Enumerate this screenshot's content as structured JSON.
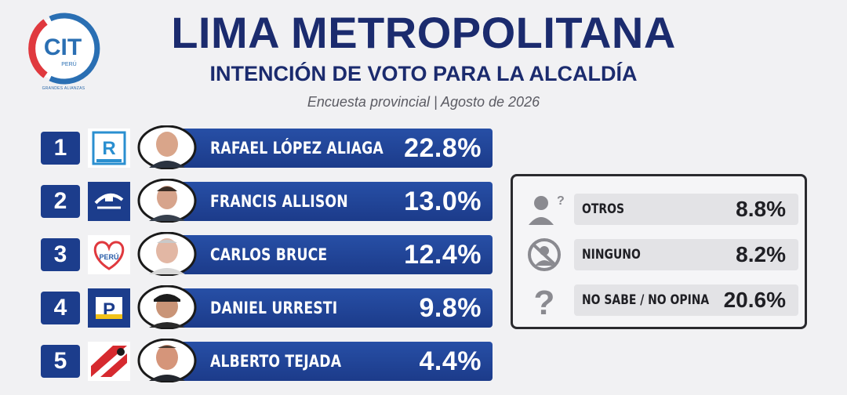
{
  "brand": {
    "logo_text": "CIT",
    "logo_sub": "PERÚ",
    "logo_tagline": "GRANDES ALIANZAS"
  },
  "header": {
    "title": "LIMA METROPOLITANA",
    "subtitle": "INTENCIÓN DE VOTO PARA LA ALCALDÍA",
    "meta": "Encuesta provincial | Agosto de 2026"
  },
  "colors": {
    "bar": "#1c3d8c",
    "title": "#1b2b6e",
    "background": "#f1f1f3"
  },
  "chart_data": {
    "type": "bar",
    "orientation": "horizontal",
    "title": "LIMA METROPOLITANA",
    "subtitle": "INTENCIÓN DE VOTO PARA LA ALCALDÍA",
    "unit": "%",
    "candidates": [
      {
        "rank": "1",
        "name": "RAFAEL LÓPEZ ALIAGA",
        "value": 22.8,
        "value_label": "22.8%",
        "party_icon": "renovacion-popular-logo"
      },
      {
        "rank": "2",
        "name": "FRANCIS ALLISON",
        "value": 13.0,
        "value_label": "13.0%",
        "party_icon": "somos-peru-logo"
      },
      {
        "rank": "3",
        "name": "CARLOS BRUCE",
        "value": 12.4,
        "value_label": "12.4%",
        "party_icon": "heart-peru-logo"
      },
      {
        "rank": "4",
        "name": "DANIEL URRESTI",
        "value": 9.8,
        "value_label": "9.8%",
        "party_icon": "podemos-peru-logo"
      },
      {
        "rank": "5",
        "name": "ALBERTO TEJADA",
        "value": 4.4,
        "value_label": "4.4%",
        "party_icon": "flag-diagonal-logo"
      }
    ],
    "other_responses": [
      {
        "label": "OTROS",
        "value": 8.8,
        "value_label": "8.8%",
        "icon": "person-question-icon"
      },
      {
        "label": "NINGUNO",
        "value": 8.2,
        "value_label": "8.2%",
        "icon": "person-crossed-icon"
      },
      {
        "label": "NO SABE / NO OPINA",
        "value": 20.6,
        "value_label": "20.6%",
        "icon": "question-mark-icon"
      }
    ]
  }
}
